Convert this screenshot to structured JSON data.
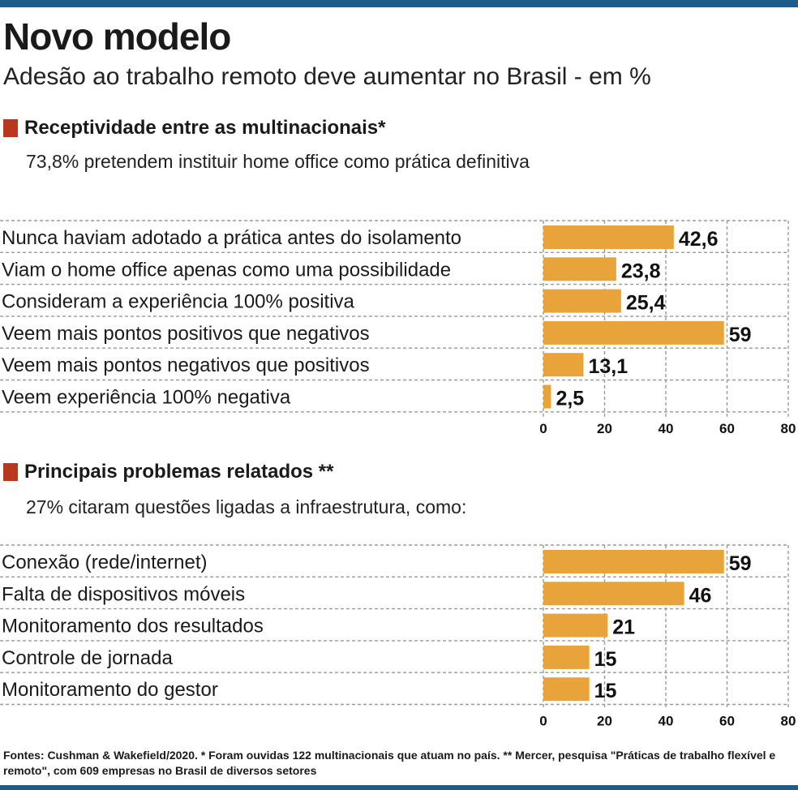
{
  "title": "Novo modelo",
  "subtitle": "Adesão ao trabalho remoto deve aumentar no Brasil - em %",
  "colors": {
    "bar": "#e8a43a",
    "accent_marker": "#b8371d",
    "rule": "#1c5c88"
  },
  "section1": {
    "heading": "Receptividade entre as multinacionais*",
    "note": "73,8% pretendem instituir home office como prática definitiva"
  },
  "section2": {
    "heading": "Principais problemas relatados **",
    "note": "27% citaram questões ligadas a infraestrutura, como:"
  },
  "chart_data": [
    {
      "type": "bar",
      "orientation": "horizontal",
      "categories": [
        "Nunca haviam adotado a prática antes do isolamento",
        "Viam o home office apenas como uma possibilidade",
        "Consideram a experiência 100% positiva",
        "Veem mais pontos positivos que negativos",
        "Veem mais pontos negativos que positivos",
        "Veem experiência 100% negativa"
      ],
      "values": [
        42.6,
        23.8,
        25.4,
        59,
        13.1,
        2.5
      ],
      "value_labels": [
        "42,6",
        "23,8",
        "25,4",
        "59",
        "13,1",
        "2,5"
      ],
      "xlim": [
        0,
        80
      ],
      "xticks": [
        "0",
        "20",
        "40",
        "60",
        "80"
      ],
      "grid": true
    },
    {
      "type": "bar",
      "orientation": "horizontal",
      "categories": [
        "Conexão (rede/internet)",
        "Falta de dispositivos móveis",
        "Monitoramento dos resultados",
        "Controle de jornada",
        "Monitoramento do gestor"
      ],
      "values": [
        59,
        46,
        21,
        15,
        15
      ],
      "value_labels": [
        "59",
        "46",
        "21",
        "15",
        "15"
      ],
      "xlim": [
        0,
        80
      ],
      "xticks": [
        "0",
        "20",
        "40",
        "60",
        "80"
      ],
      "grid": true
    }
  ],
  "footer": "Fontes: Cushman & Wakefield/2020. * Foram ouvidas 122 multinacionais que atuam no país. ** Mercer, pesquisa \"Práticas de trabalho flexível e remoto\", com 609 empresas no Brasil de diversos setores"
}
